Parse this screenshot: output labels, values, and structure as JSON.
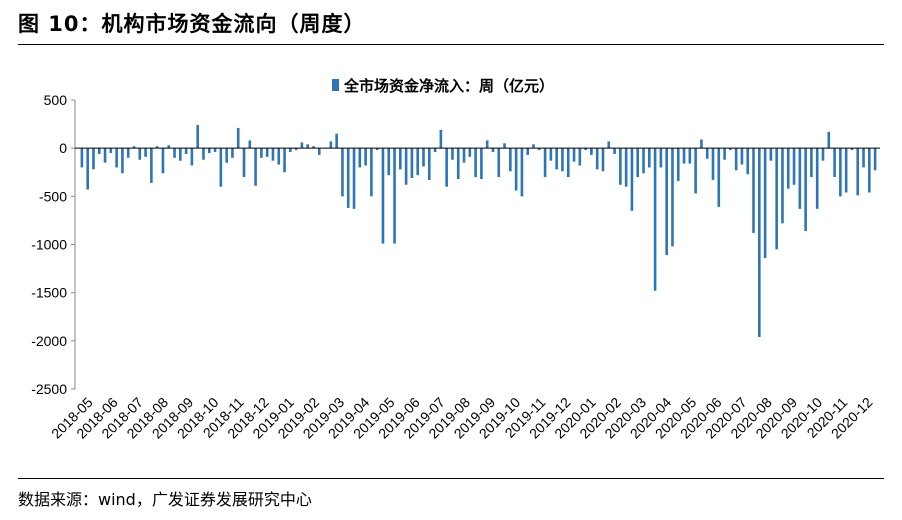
{
  "figure": {
    "title": "图 10：机构市场资金流向（周度）",
    "source": "数据来源：wind，广发证券发展研究中心"
  },
  "chart_data": {
    "type": "bar",
    "title": "",
    "legend": {
      "label": "全市场资金净流入：周（亿元）",
      "position": "top-center"
    },
    "ylabel": "",
    "xlabel": "",
    "ylim": [
      -2500,
      500
    ],
    "yticks": [
      500,
      0,
      -500,
      -1000,
      -1500,
      -2000,
      -2500
    ],
    "grid": false,
    "bar_color": "#2E75B6",
    "month_labels": [
      "2018-05",
      "2018-06",
      "2018-07",
      "2018-08",
      "2018-09",
      "2018-10",
      "2018-11",
      "2018-12",
      "2019-01",
      "2019-02",
      "2019-03",
      "2019-04",
      "2019-05",
      "2019-06",
      "2019-07",
      "2019-08",
      "2019-09",
      "2019-10",
      "2019-11",
      "2019-12",
      "2020-01",
      "2020-02",
      "2020-03",
      "2020-04",
      "2020-05",
      "2020-06",
      "2020-07",
      "2020-08",
      "2020-09",
      "2020-10",
      "2020-11",
      "2020-12"
    ],
    "series": [
      {
        "values": [
          -200,
          -430,
          -220,
          -60,
          -150,
          -50,
          -200,
          -260,
          -100,
          20,
          -120,
          -90,
          -360,
          20,
          -260,
          30,
          -100,
          -130,
          -60,
          -180,
          240,
          -120,
          -50,
          -40,
          -400,
          -150,
          -100,
          210,
          -300,
          80,
          -390,
          -100,
          -90,
          -130,
          -170,
          -250,
          -40,
          -20,
          60,
          40,
          20,
          -70,
          0,
          70,
          150,
          -500,
          -620,
          -630,
          -200,
          -180,
          -500,
          -20,
          -990,
          -280,
          -990,
          -220,
          -380,
          -310,
          -280,
          -190,
          -330,
          -40,
          190,
          -400,
          -120,
          -320,
          -150,
          -90,
          -300,
          -320,
          80,
          -40,
          -300,
          50,
          -240,
          -440,
          -500,
          -70,
          40,
          -20,
          -300,
          -130,
          -220,
          -240,
          -300,
          -140,
          -180,
          -20,
          -70,
          -220,
          -240,
          70,
          -60,
          -380,
          -400,
          -650,
          -300,
          -260,
          -200,
          -1480,
          -200,
          -1110,
          -1020,
          -340,
          -160,
          -160,
          -470,
          90,
          -110,
          -330,
          -610,
          -120,
          -20,
          -230,
          -170,
          -270,
          -880,
          -1960,
          -1140,
          -130,
          -1050,
          -780,
          -420,
          -380,
          -630,
          -860,
          -300,
          -630,
          -130,
          170,
          -300,
          -500,
          -460,
          -20,
          -490,
          -200,
          -460,
          -230
        ]
      }
    ]
  }
}
